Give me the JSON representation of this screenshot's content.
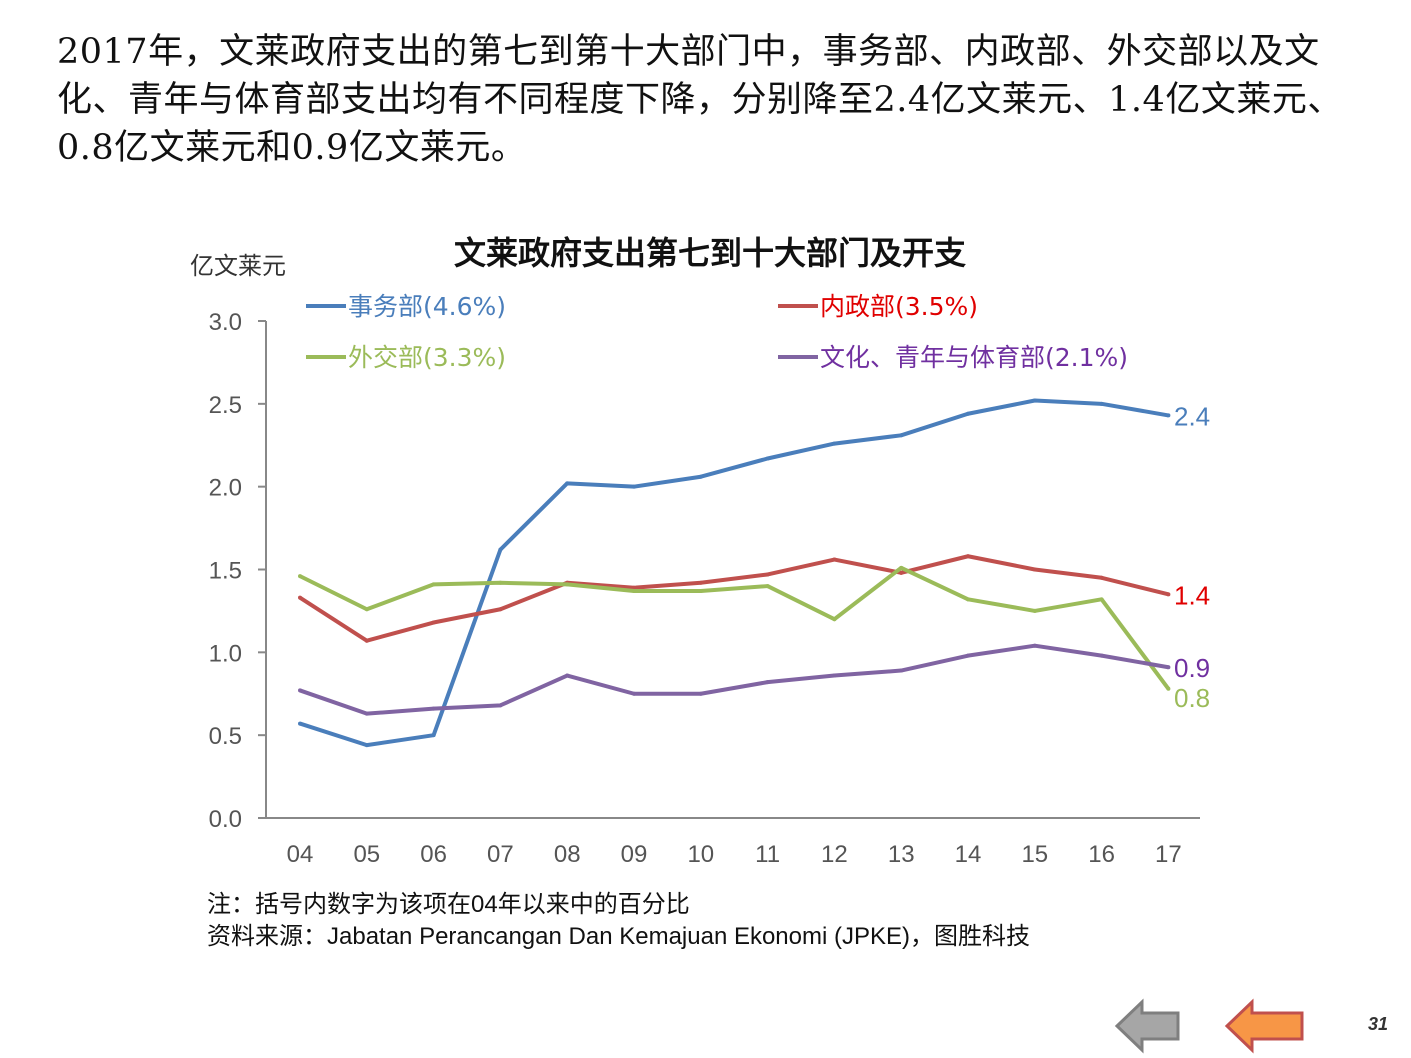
{
  "headline": "2017年，文莱政府支出的第七到第十大部门中，事务部、内政部、外交部以及文化、青年与体育部支出均有不同程度下降，分别降至2.4亿文莱元、1.4亿文莱元、0.8亿文莱元和0.9亿文莱元。",
  "chart_data": {
    "type": "line",
    "title": "文莱政府支出第七到十大部门及开支",
    "ylabel": "亿文莱元",
    "xlabel": "",
    "ylim": [
      0,
      3.0
    ],
    "yticks": [
      "0.0",
      "0.5",
      "1.0",
      "1.5",
      "2.0",
      "2.5",
      "3.0"
    ],
    "categories": [
      "04",
      "05",
      "06",
      "07",
      "08",
      "09",
      "10",
      "11",
      "12",
      "13",
      "14",
      "15",
      "16",
      "17"
    ],
    "legend_position": "top",
    "series": [
      {
        "name": "事务部(4.6%)",
        "color": "#4a7ebb",
        "label_color": "#4a7ebb",
        "end_label": "2.4",
        "values": [
          0.57,
          0.44,
          0.5,
          1.62,
          2.02,
          2.0,
          2.06,
          2.17,
          2.26,
          2.31,
          2.44,
          2.52,
          2.5,
          2.43
        ]
      },
      {
        "name": "内政部(3.5%)",
        "color": "#c0504d",
        "label_color": "#e00000",
        "end_label": "1.4",
        "values": [
          1.33,
          1.07,
          1.18,
          1.26,
          1.42,
          1.39,
          1.42,
          1.47,
          1.56,
          1.48,
          1.58,
          1.5,
          1.45,
          1.35
        ]
      },
      {
        "name": "外交部(3.3%)",
        "color": "#9bbb59",
        "label_color": "#9bbb59",
        "end_label": "0.8",
        "values": [
          1.46,
          1.26,
          1.41,
          1.42,
          1.41,
          1.37,
          1.37,
          1.4,
          1.2,
          1.51,
          1.32,
          1.25,
          1.32,
          0.78
        ]
      },
      {
        "name": "文化、青年与体育部(2.1%)",
        "color": "#8064a2",
        "label_color": "#7030a0",
        "end_label": "0.9",
        "values": [
          0.77,
          0.63,
          0.66,
          0.68,
          0.86,
          0.75,
          0.75,
          0.82,
          0.86,
          0.89,
          0.98,
          1.04,
          0.98,
          0.91
        ]
      }
    ]
  },
  "notes": {
    "note": "注：括号内数字为该项在04年以来中的百分比",
    "source": "资料来源：Jabatan Perancangan Dan Kemajuan Ekonomi (JPKE)，图胜科技"
  },
  "nav": {
    "prev_icon": "gray-left-arrow",
    "next_icon": "orange-left-arrow"
  },
  "page_number": "31"
}
